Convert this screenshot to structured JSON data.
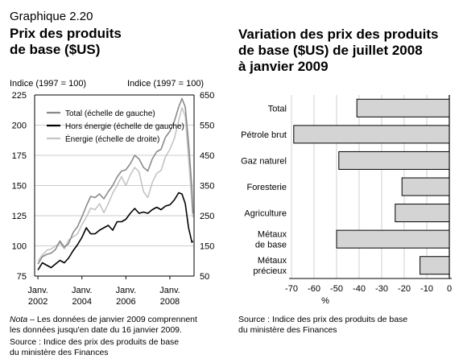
{
  "left_panel": {
    "number": "Graphique 2.20",
    "title_line1": "Prix des produits",
    "title_line2": "de base ($US)",
    "left_axis_label": "Indice (1997 = 100)",
    "right_axis_label": "Indice (1997 = 100)",
    "note_prefix": "Nota",
    "note_text": " – Les données de janvier 2009 comprennent",
    "note_line2": "les données jusqu'en date du 16 janvier 2009.",
    "source_line1": "Source : Indice des prix des produits de base",
    "source_line2": "du ministère des Finances"
  },
  "right_panel": {
    "title_line1": "Variation des prix des produits",
    "title_line2": "de base ($US) de juillet 2008",
    "title_line3": "à janvier 2009",
    "source_line1": "Source : Indice des prix des produits de base",
    "source_line2": "du ministère des Finances"
  },
  "colors": {
    "total": "#8a8a8a",
    "hors_energie": "#000000",
    "energie": "#c4c4c4",
    "bar_fill": "#d4d4d4"
  },
  "chart_data": [
    {
      "type": "line",
      "left_axis": {
        "ylim": [
          75,
          225
        ],
        "ticks": [
          "75",
          "100",
          "125",
          "150",
          "175",
          "200",
          "225"
        ]
      },
      "right_axis": {
        "ylim": [
          50,
          650
        ],
        "ticks": [
          "50",
          "150",
          "250",
          "350",
          "450",
          "550",
          "650"
        ]
      },
      "x_ticks": [
        {
          "x": 2002,
          "line1": "Janv.",
          "line2": "2002"
        },
        {
          "x": 2004,
          "line1": "Janv.",
          "line2": "2004"
        },
        {
          "x": 2006,
          "line1": "Janv.",
          "line2": "2006"
        },
        {
          "x": 2008,
          "line1": "Janv.",
          "line2": "2008"
        }
      ],
      "xlim": [
        2001.85,
        2009.1
      ],
      "legend": {
        "placement": "top-left"
      },
      "series": [
        {
          "name": "Total (échelle de gauche)",
          "axis": "left",
          "color_key": "total",
          "points": [
            [
              2002.0,
              85
            ],
            [
              2002.2,
              91
            ],
            [
              2002.4,
              93
            ],
            [
              2002.6,
              94
            ],
            [
              2002.8,
              97
            ],
            [
              2003.0,
              104
            ],
            [
              2003.2,
              99
            ],
            [
              2003.4,
              102
            ],
            [
              2003.6,
              111
            ],
            [
              2003.8,
              116
            ],
            [
              2004.0,
              124
            ],
            [
              2004.2,
              133
            ],
            [
              2004.4,
              141
            ],
            [
              2004.6,
              140
            ],
            [
              2004.8,
              143
            ],
            [
              2005.0,
              139
            ],
            [
              2005.2,
              145
            ],
            [
              2005.4,
              150
            ],
            [
              2005.6,
              157
            ],
            [
              2005.8,
              162
            ],
            [
              2006.0,
              163
            ],
            [
              2006.2,
              168
            ],
            [
              2006.4,
              175
            ],
            [
              2006.6,
              172
            ],
            [
              2006.8,
              165
            ],
            [
              2007.0,
              162
            ],
            [
              2007.2,
              172
            ],
            [
              2007.4,
              178
            ],
            [
              2007.6,
              180
            ],
            [
              2007.8,
              190
            ],
            [
              2008.0,
              195
            ],
            [
              2008.2,
              203
            ],
            [
              2008.4,
              215
            ],
            [
              2008.55,
              222
            ],
            [
              2008.7,
              215
            ],
            [
              2008.85,
              185
            ],
            [
              2009.0,
              148
            ],
            [
              2009.05,
              127
            ]
          ]
        },
        {
          "name": "Hors énergie (échelle de gauche)",
          "axis": "left",
          "color_key": "hors_energie",
          "points": [
            [
              2002.0,
              80
            ],
            [
              2002.2,
              86
            ],
            [
              2002.4,
              84
            ],
            [
              2002.6,
              82
            ],
            [
              2002.8,
              85
            ],
            [
              2003.0,
              88
            ],
            [
              2003.2,
              86
            ],
            [
              2003.4,
              90
            ],
            [
              2003.6,
              96
            ],
            [
              2003.8,
              101
            ],
            [
              2004.0,
              107
            ],
            [
              2004.2,
              115
            ],
            [
              2004.4,
              110
            ],
            [
              2004.6,
              110
            ],
            [
              2004.8,
              113
            ],
            [
              2005.0,
              115
            ],
            [
              2005.2,
              117
            ],
            [
              2005.4,
              113
            ],
            [
              2005.6,
              120
            ],
            [
              2005.8,
              120
            ],
            [
              2006.0,
              122
            ],
            [
              2006.2,
              127
            ],
            [
              2006.4,
              131
            ],
            [
              2006.6,
              127
            ],
            [
              2006.8,
              128
            ],
            [
              2007.0,
              127
            ],
            [
              2007.2,
              130
            ],
            [
              2007.4,
              132
            ],
            [
              2007.6,
              130
            ],
            [
              2007.8,
              133
            ],
            [
              2008.0,
              134
            ],
            [
              2008.2,
              138
            ],
            [
              2008.4,
              144
            ],
            [
              2008.55,
              143
            ],
            [
              2008.7,
              135
            ],
            [
              2008.85,
              115
            ],
            [
              2009.0,
              103
            ],
            [
              2009.05,
              104
            ]
          ]
        },
        {
          "name": "Énergie (échelle de droite)",
          "axis": "right",
          "color_key": "energie",
          "points": [
            [
              2002.0,
              100
            ],
            [
              2002.2,
              120
            ],
            [
              2002.4,
              135
            ],
            [
              2002.6,
              140
            ],
            [
              2002.8,
              150
            ],
            [
              2003.0,
              160
            ],
            [
              2003.2,
              140
            ],
            [
              2003.4,
              170
            ],
            [
              2003.6,
              180
            ],
            [
              2003.8,
              190
            ],
            [
              2004.0,
              220
            ],
            [
              2004.2,
              245
            ],
            [
              2004.4,
              275
            ],
            [
              2004.6,
              270
            ],
            [
              2004.8,
              290
            ],
            [
              2005.0,
              260
            ],
            [
              2005.2,
              290
            ],
            [
              2005.4,
              325
            ],
            [
              2005.6,
              350
            ],
            [
              2005.8,
              380
            ],
            [
              2006.0,
              350
            ],
            [
              2006.2,
              385
            ],
            [
              2006.4,
              410
            ],
            [
              2006.6,
              395
            ],
            [
              2006.8,
              330
            ],
            [
              2007.0,
              310
            ],
            [
              2007.2,
              360
            ],
            [
              2007.4,
              390
            ],
            [
              2007.6,
              400
            ],
            [
              2007.8,
              445
            ],
            [
              2008.0,
              470
            ],
            [
              2008.2,
              505
            ],
            [
              2008.4,
              565
            ],
            [
              2008.55,
              608
            ],
            [
              2008.7,
              580
            ],
            [
              2008.85,
              440
            ],
            [
              2009.0,
              290
            ],
            [
              2009.05,
              245
            ]
          ]
        }
      ]
    },
    {
      "type": "bar",
      "orientation": "horizontal",
      "categories": [
        "Total",
        "Pétrole brut",
        "Gaz naturel",
        "Foresterie",
        "Agriculture",
        "Métaux\nde base",
        "Métaux\nprécieux"
      ],
      "values": [
        -41,
        -69,
        -49,
        -21,
        -24,
        -50,
        -13
      ],
      "xlabel": "%",
      "xlim": [
        -70,
        0
      ],
      "ticks": [
        "-70",
        "-60",
        "-50",
        "-40",
        "-30",
        "-20",
        "-10",
        "0"
      ]
    }
  ]
}
